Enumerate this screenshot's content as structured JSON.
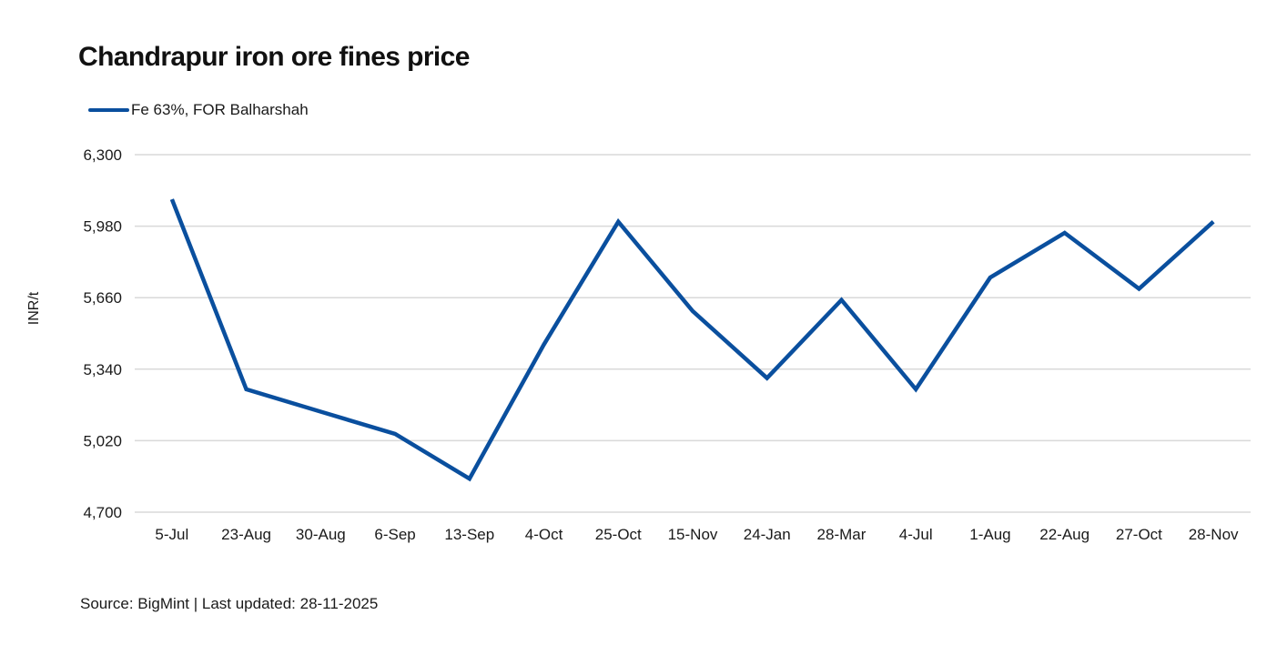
{
  "title": "Chandrapur iron ore fines price",
  "legend": {
    "label": "Fe 63%, FOR Balharshah",
    "color": "#0a4f9e"
  },
  "y_axis": {
    "title": "INR/t",
    "ticks": [
      "6,300",
      "5,980",
      "5,660",
      "5,340",
      "5,020",
      "4,700"
    ]
  },
  "x_axis": {
    "ticks": [
      "5-Jul",
      "23-Aug",
      "30-Aug",
      "6-Sep",
      "13-Sep",
      "4-Oct",
      "25-Oct",
      "15-Nov",
      "24-Jan",
      "28-Mar",
      "4-Jul",
      "1-Aug",
      "22-Aug",
      "27-Oct",
      "28-Nov"
    ]
  },
  "footer": {
    "source": "Source: BigMint | Last updated: 28-11-2025"
  },
  "colors": {
    "line": "#0a4f9e",
    "gridline": "#d9d9d9",
    "text": "#1a1a1a"
  },
  "chart_data": {
    "type": "line",
    "title": "Chandrapur iron ore fines price",
    "xlabel": "",
    "ylabel": "INR/t",
    "ylim": [
      4700,
      6300
    ],
    "yticks": [
      4700,
      5020,
      5340,
      5660,
      5980,
      6300
    ],
    "grid": true,
    "legend_position": "top-left",
    "categories": [
      "5-Jul",
      "23-Aug",
      "30-Aug",
      "6-Sep",
      "13-Sep",
      "4-Oct",
      "25-Oct",
      "15-Nov",
      "24-Jan",
      "28-Mar",
      "4-Jul",
      "1-Aug",
      "22-Aug",
      "27-Oct",
      "28-Nov"
    ],
    "series": [
      {
        "name": "Fe 63%, FOR Balharshah",
        "color": "#0a4f9e",
        "values": [
          6100,
          5250,
          5150,
          5050,
          4850,
          5450,
          6000,
          5600,
          5300,
          5650,
          5250,
          5750,
          5950,
          5700,
          6000
        ]
      }
    ],
    "annotations": [
      "Source: BigMint | Last updated: 28-11-2025"
    ]
  }
}
